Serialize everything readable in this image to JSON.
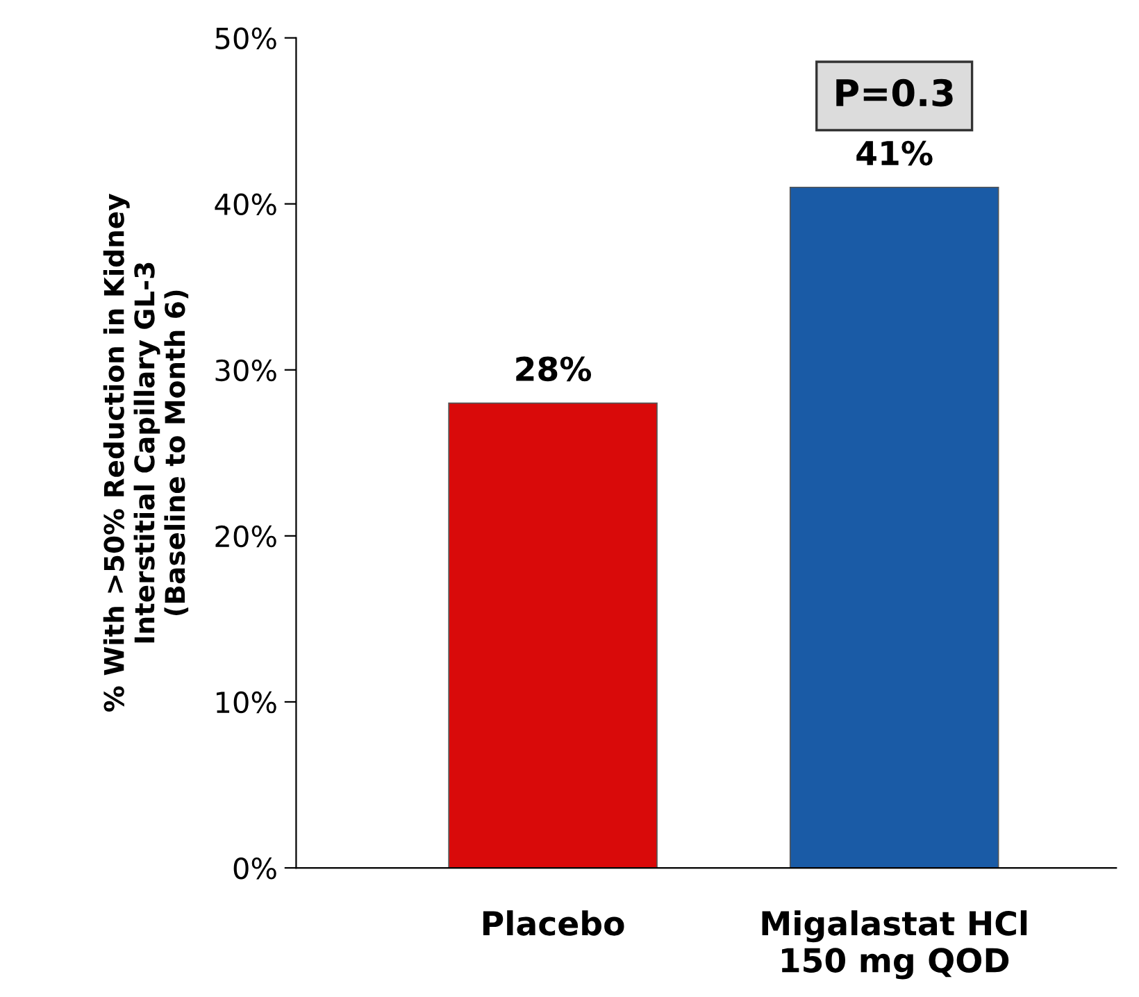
{
  "chart_data": {
    "type": "bar",
    "ylabel": "% With >50% Reduction in Kidney\nInterstitial Capillary GL-3\n(Baseline to Month 6)",
    "categories": [
      "Placebo",
      "Migalastat HCl\n150 mg QOD"
    ],
    "values": [
      28,
      41
    ],
    "colors": [
      "#d90a0a",
      "#1a5ba6"
    ],
    "value_labels": [
      "28%",
      "41%"
    ],
    "ylim": [
      0,
      50
    ],
    "yticks": [
      {
        "value": 0,
        "label": "0%"
      },
      {
        "value": 10,
        "label": "10%"
      },
      {
        "value": 20,
        "label": "20%"
      },
      {
        "value": 30,
        "label": "30%"
      },
      {
        "value": 40,
        "label": "40%"
      },
      {
        "value": 50,
        "label": "50%"
      }
    ],
    "annotations": [
      "P=0.3"
    ],
    "grid": false
  }
}
